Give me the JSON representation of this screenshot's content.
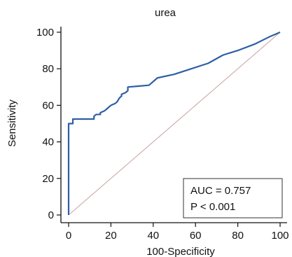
{
  "chart_data": {
    "type": "line",
    "title": "urea",
    "xlabel": "100-Specificity",
    "ylabel": "Sensitivity",
    "xlim": [
      0,
      100
    ],
    "ylim": [
      0,
      100
    ],
    "x_ticks": [
      0,
      20,
      40,
      60,
      80,
      100
    ],
    "y_ticks": [
      0,
      20,
      40,
      60,
      80,
      100
    ],
    "grid": false,
    "series": [
      {
        "kind": "roc",
        "color": "#2e5fa5",
        "points": [
          [
            0,
            0
          ],
          [
            0,
            20
          ],
          [
            0,
            40
          ],
          [
            0,
            50
          ],
          [
            2,
            50
          ],
          [
            2,
            52.5
          ],
          [
            12,
            52.5
          ],
          [
            12,
            54
          ],
          [
            13,
            55
          ],
          [
            15,
            55
          ],
          [
            15,
            56
          ],
          [
            17,
            57
          ],
          [
            18,
            58
          ],
          [
            19,
            59
          ],
          [
            20,
            60
          ],
          [
            22,
            61
          ],
          [
            23,
            62
          ],
          [
            24,
            64
          ],
          [
            25,
            65
          ],
          [
            25,
            66
          ],
          [
            27,
            67
          ],
          [
            28,
            68
          ],
          [
            28,
            70
          ],
          [
            33,
            70.5
          ],
          [
            38,
            71
          ],
          [
            42,
            75
          ],
          [
            50,
            77
          ],
          [
            58,
            80
          ],
          [
            66,
            83
          ],
          [
            73,
            87.5
          ],
          [
            80,
            90
          ],
          [
            88,
            93.5
          ],
          [
            95,
            97.5
          ],
          [
            100,
            100
          ]
        ]
      },
      {
        "kind": "reference-diagonal",
        "color": "#c9a3a3",
        "points": [
          [
            0,
            0
          ],
          [
            100,
            100
          ]
        ]
      }
    ],
    "annotation": {
      "auc_text": "AUC = 0.757",
      "p_text": "P < 0.001",
      "placement": "bottom-right"
    }
  }
}
